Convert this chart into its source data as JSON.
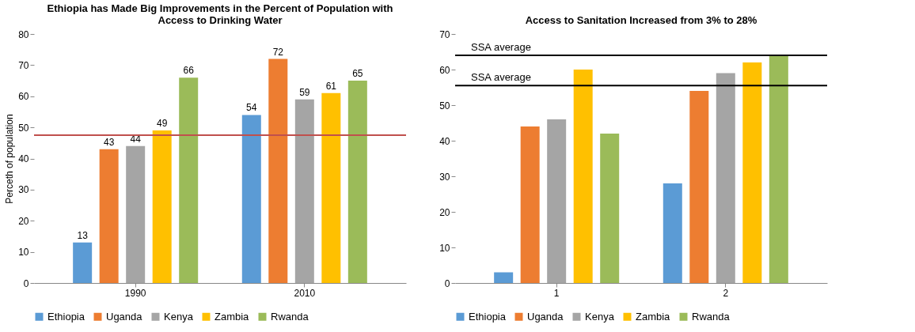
{
  "chart_data": [
    {
      "type": "bar",
      "title": [
        "Ethiopia has Made Big Improvements in the Percent of Population with",
        "Access to Drinking Water"
      ],
      "ylabel": "Perceth of population",
      "categories": [
        "1990",
        "2010"
      ],
      "series": [
        {
          "name": "Ethiopia",
          "color": "#5b9bd5",
          "values": [
            13,
            54
          ]
        },
        {
          "name": "Uganda",
          "color": "#ed7d31",
          "values": [
            43,
            72
          ]
        },
        {
          "name": "Kenya",
          "color": "#a5a5a5",
          "values": [
            44,
            59
          ]
        },
        {
          "name": "Zambia",
          "color": "#ffc000",
          "values": [
            49,
            61
          ]
        },
        {
          "name": "Rwanda",
          "color": "#9bbb59",
          "values": [
            66,
            65
          ]
        }
      ],
      "ylim": [
        0,
        80
      ],
      "yticks": [
        0,
        10,
        20,
        30,
        40,
        50,
        60,
        70,
        80
      ],
      "data_labels": true,
      "legend": "bottom",
      "grid": false,
      "ref_lines": [
        {
          "axis": "y",
          "value": 47.5,
          "color": "#c0504d"
        }
      ]
    },
    {
      "type": "bar",
      "title": "Access to Sanitation Increased from 3% to 28%",
      "categories": [
        "1",
        "2"
      ],
      "series": [
        {
          "name": "Ethiopia",
          "color": "#5b9bd5",
          "values": [
            3,
            28
          ]
        },
        {
          "name": "Uganda",
          "color": "#ed7d31",
          "values": [
            44,
            54
          ]
        },
        {
          "name": "Kenya",
          "color": "#a5a5a5",
          "values": [
            46,
            59
          ]
        },
        {
          "name": "Zambia",
          "color": "#ffc000",
          "values": [
            60,
            62
          ]
        },
        {
          "name": "Rwanda",
          "color": "#9bbb59",
          "values": [
            42,
            64
          ]
        }
      ],
      "ylim": [
        0,
        70
      ],
      "yticks": [
        0,
        10,
        20,
        30,
        40,
        50,
        60,
        70
      ],
      "legend": "bottom",
      "grid": false,
      "ref_lines": [
        {
          "axis": "y",
          "value": 55.5,
          "label": "SSA average",
          "color": "#000000"
        },
        {
          "axis": "y",
          "value": 64,
          "label": "SSA average",
          "color": "#000000"
        }
      ]
    }
  ]
}
